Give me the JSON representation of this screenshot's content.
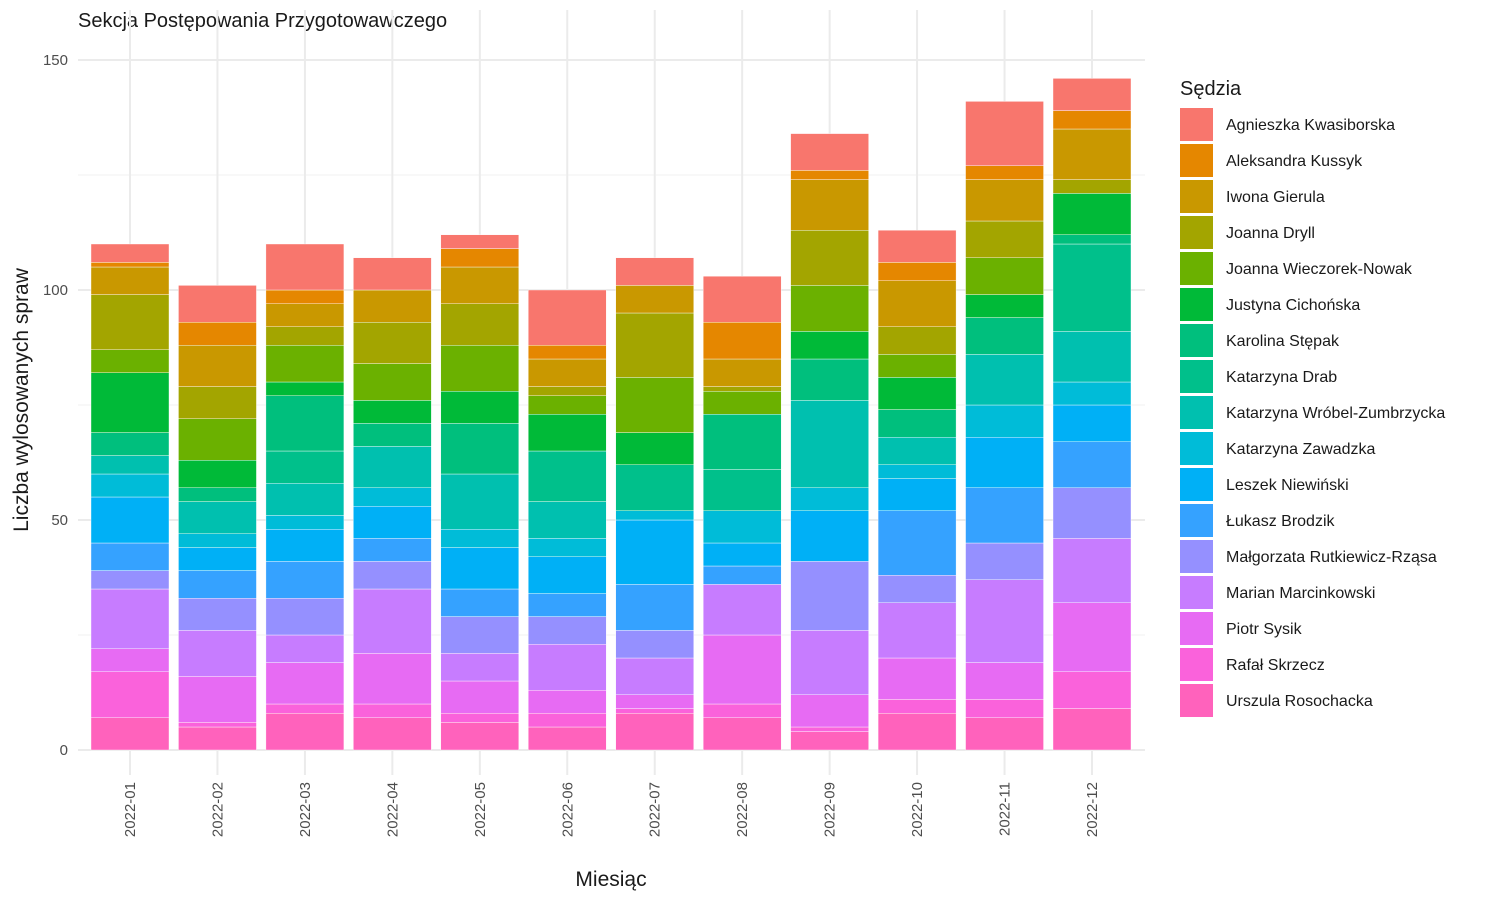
{
  "chart_data": {
    "type": "bar",
    "stacked": true,
    "title": "Sekcja Postępowania Przygotowawczego",
    "xlabel": "Miesiąc",
    "ylabel": "Liczba wylosowanych spraw",
    "ylim": [
      0,
      160
    ],
    "yticks": [
      0,
      50,
      100,
      150
    ],
    "grid": true,
    "legend_title": "Sędzia",
    "legend_position": "right",
    "categories": [
      "2022-01",
      "2022-02",
      "2022-03",
      "2022-04",
      "2022-05",
      "2022-06",
      "2022-07",
      "2022-08",
      "2022-09",
      "2022-10",
      "2022-11",
      "2022-12"
    ],
    "series": [
      {
        "name": "Agnieszka Kwasiborska",
        "color": "#F8766D",
        "values": [
          4,
          8,
          10,
          7,
          3,
          12,
          6,
          10,
          8,
          7,
          14,
          7
        ]
      },
      {
        "name": "Aleksandra Kussyk",
        "color": "#E58700",
        "values": [
          1,
          5,
          3,
          0,
          4,
          3,
          0,
          8,
          2,
          4,
          3,
          4
        ]
      },
      {
        "name": "Iwona Gierula",
        "color": "#C99800",
        "values": [
          6,
          9,
          5,
          7,
          8,
          6,
          6,
          6,
          11,
          10,
          9,
          11
        ]
      },
      {
        "name": "Joanna Dryll",
        "color": "#A3A500",
        "values": [
          12,
          7,
          4,
          9,
          9,
          2,
          14,
          1,
          12,
          6,
          8,
          3
        ]
      },
      {
        "name": "Joanna Wieczorek-Nowak",
        "color": "#6BB100",
        "values": [
          5,
          9,
          8,
          8,
          10,
          4,
          12,
          5,
          10,
          5,
          8,
          0
        ]
      },
      {
        "name": "Justyna Cichońska",
        "color": "#00BA38",
        "values": [
          13,
          6,
          3,
          5,
          7,
          8,
          7,
          0,
          6,
          7,
          5,
          9
        ]
      },
      {
        "name": "Karolina Stępak",
        "color": "#00BF7D",
        "values": [
          5,
          3,
          12,
          5,
          11,
          0,
          0,
          12,
          9,
          6,
          8,
          2
        ]
      },
      {
        "name": "Katarzyna Drab",
        "color": "#00C08B",
        "values": [
          0,
          0,
          7,
          0,
          0,
          11,
          10,
          9,
          0,
          0,
          0,
          19
        ]
      },
      {
        "name": "Katarzyna Wróbel-Zumbrzycka",
        "color": "#00C0AF",
        "values": [
          4,
          7,
          7,
          9,
          12,
          8,
          0,
          0,
          19,
          6,
          11,
          11
        ]
      },
      {
        "name": "Katarzyna Zawadzka",
        "color": "#00BCD8",
        "values": [
          5,
          3,
          3,
          4,
          4,
          4,
          2,
          7,
          5,
          3,
          7,
          5
        ]
      },
      {
        "name": "Leszek Niewiński",
        "color": "#00B0F6",
        "values": [
          10,
          5,
          7,
          7,
          9,
          8,
          14,
          5,
          11,
          7,
          11,
          8
        ]
      },
      {
        "name": "Łukasz Brodzik",
        "color": "#35A2FF",
        "values": [
          6,
          6,
          8,
          5,
          6,
          5,
          10,
          4,
          0,
          14,
          12,
          10
        ]
      },
      {
        "name": "Małgorzata Rutkiewicz-Rząsa",
        "color": "#9590FF",
        "values": [
          4,
          7,
          8,
          6,
          8,
          6,
          6,
          0,
          15,
          6,
          8,
          11
        ]
      },
      {
        "name": "Marian Marcinkowski",
        "color": "#C77CFF",
        "values": [
          13,
          10,
          6,
          14,
          6,
          10,
          8,
          11,
          14,
          12,
          18,
          14
        ]
      },
      {
        "name": "Piotr Sysik",
        "color": "#E76BF3",
        "values": [
          5,
          10,
          9,
          11,
          7,
          5,
          3,
          15,
          7,
          9,
          8,
          15
        ]
      },
      {
        "name": "Rafał Skrzecz",
        "color": "#FA62DB",
        "values": [
          10,
          1,
          2,
          3,
          2,
          3,
          1,
          3,
          1,
          3,
          4,
          8
        ]
      },
      {
        "name": "Urszula Rosochacka",
        "color": "#FF62BC",
        "values": [
          7,
          5,
          8,
          7,
          6,
          5,
          8,
          7,
          4,
          8,
          7,
          9
        ]
      }
    ]
  }
}
